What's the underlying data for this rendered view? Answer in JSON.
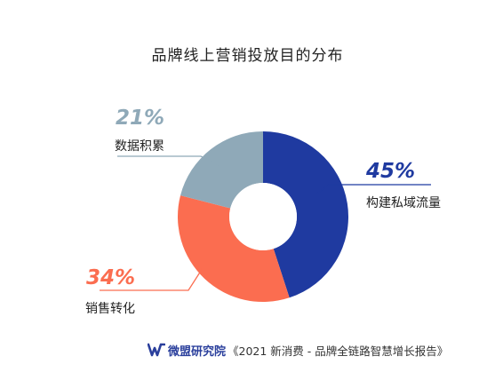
{
  "title": "品牌线上营销投放目的分布",
  "chart_data": {
    "type": "pie",
    "donut": true,
    "slices": [
      {
        "label": "构建私域流量",
        "value": 45,
        "display": "45%",
        "color": "#1f3aa0"
      },
      {
        "label": "销售转化",
        "value": 34,
        "display": "34%",
        "color": "#fb6d50"
      },
      {
        "label": "数据积累",
        "value": 21,
        "display": "21%",
        "color": "#8fa9b8"
      }
    ],
    "start": "12 o'clock, clockwise",
    "legend": "none"
  },
  "footer": {
    "brand": "微盟研究院",
    "source": "《2021 新消费 - 品牌全链路智慧增长报告》"
  }
}
